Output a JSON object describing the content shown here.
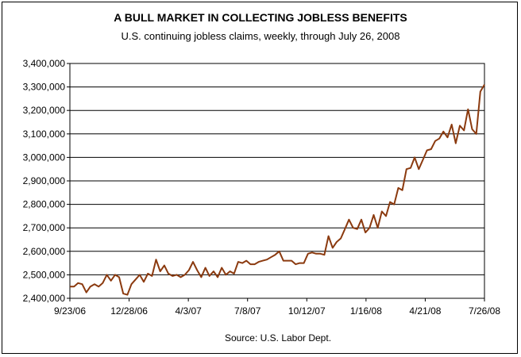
{
  "chart_data": {
    "type": "line",
    "title": "A BULL MARKET IN COLLECTING JOBLESS BENEFITS",
    "subtitle": "U.S. continuing jobless claims, weekly, through July 26, 2008",
    "source": "Source: U.S. Labor Dept.",
    "xlabel": "",
    "ylabel": "",
    "ylim": [
      2400000,
      3400000
    ],
    "yticks": [
      2400000,
      2500000,
      2600000,
      2700000,
      2800000,
      2900000,
      3000000,
      3100000,
      3200000,
      3300000,
      3400000
    ],
    "ytick_labels": [
      "2,400,000",
      "2,500,000",
      "2,600,000",
      "2,700,000",
      "2,800,000",
      "2,900,000",
      "3,000,000",
      "3,100,000",
      "3,200,000",
      "3,300,000",
      "3,400,000"
    ],
    "xtick_labels": [
      "9/23/06",
      "12/28/06",
      "4/3/07",
      "7/8/07",
      "10/12/07",
      "1/16/08",
      "4/21/08",
      "7/26/08"
    ],
    "grid": true,
    "line_color": "#8B3A0F",
    "series": [
      {
        "values": [
          2450000,
          2450000,
          2465000,
          2460000,
          2425000,
          2450000,
          2460000,
          2450000,
          2465000,
          2500000,
          2475000,
          2500000,
          2490000,
          2420000,
          2415000,
          2460000,
          2480000,
          2500000,
          2470000,
          2505000,
          2495000,
          2565000,
          2515000,
          2540000,
          2505000,
          2495000,
          2500000,
          2490000,
          2500000,
          2520000,
          2555000,
          2520000,
          2490000,
          2530000,
          2495000,
          2515000,
          2490000,
          2530000,
          2500000,
          2515000,
          2505000,
          2555000,
          2550000,
          2560000,
          2545000,
          2545000,
          2555000,
          2560000,
          2565000,
          2575000,
          2585000,
          2600000,
          2560000,
          2560000,
          2560000,
          2545000,
          2550000,
          2550000,
          2590000,
          2595000,
          2590000,
          2590000,
          2585000,
          2665000,
          2615000,
          2640000,
          2655000,
          2695000,
          2735000,
          2700000,
          2695000,
          2735000,
          2680000,
          2700000,
          2755000,
          2700000,
          2770000,
          2750000,
          2810000,
          2800000,
          2870000,
          2860000,
          2950000,
          2955000,
          3000000,
          2950000,
          2990000,
          3030000,
          3035000,
          3070000,
          3080000,
          3110000,
          3085000,
          3140000,
          3060000,
          3135000,
          3115000,
          3205000,
          3120000,
          3100000,
          3280000,
          3310000
        ]
      }
    ]
  }
}
